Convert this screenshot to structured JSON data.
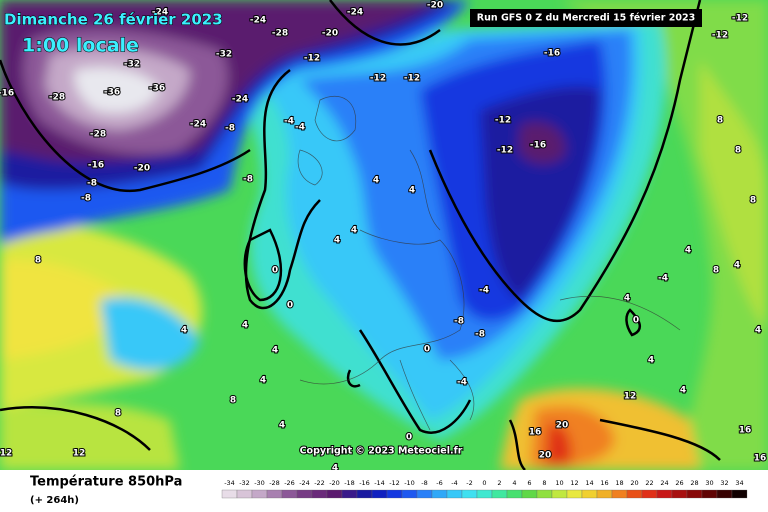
{
  "header": {
    "date": "Dimanche 26 février 2023",
    "time": "1:00 locale",
    "run": "Run GFS 0 Z du Mercredi 15 février 2023"
  },
  "copyright": "Copyright © 2023 Meteociel.fr",
  "footer": {
    "title": "Température 850hPa",
    "lead": "(+ 264h)"
  },
  "scale": {
    "ticks": [
      -34,
      -32,
      -30,
      -28,
      -26,
      -24,
      -22,
      -20,
      -18,
      -16,
      -14,
      -12,
      -10,
      -8,
      -6,
      -4,
      -2,
      0,
      2,
      4,
      6,
      8,
      10,
      12,
      14,
      16,
      18,
      20,
      22,
      24,
      26,
      28,
      30,
      32,
      34
    ],
    "colors": [
      "#e8dde8",
      "#d8c4d8",
      "#c4a8c8",
      "#a880b0",
      "#8c5898",
      "#763c84",
      "#6a2a7a",
      "#5a1a6e",
      "#3a1a8a",
      "#1a1aa0",
      "#1020c0",
      "#1438e0",
      "#1e58f0",
      "#2a80f8",
      "#30a8f8",
      "#38c8f8",
      "#40e0f0",
      "#40e8d0",
      "#40e8a0",
      "#48e070",
      "#60d848",
      "#90e040",
      "#c0e840",
      "#e8e840",
      "#f0d030",
      "#f0b028",
      "#f08020",
      "#e85018",
      "#e03018",
      "#c81818",
      "#a81010",
      "#880808",
      "#600404",
      "#380202",
      "#100000"
    ]
  },
  "contour_labels": [
    -24,
    -24,
    -28,
    -20,
    -24,
    -20,
    -32,
    -32,
    -36,
    -36,
    -28,
    -28,
    -24,
    -24,
    -16,
    -16,
    -20,
    -8,
    -8,
    -8,
    -12,
    -12,
    -12,
    -16,
    -12,
    -12,
    -16,
    -8,
    -4,
    -4,
    4,
    4,
    4,
    4,
    0,
    0,
    4,
    4,
    4,
    4,
    4,
    8,
    8,
    8,
    12,
    12,
    4,
    -4,
    -8,
    -8,
    -4,
    0,
    0,
    12,
    16,
    20,
    20,
    16,
    16,
    8,
    8,
    4,
    4,
    8,
    4,
    0,
    4,
    -4,
    8,
    4,
    4,
    -12,
    -12
  ]
}
